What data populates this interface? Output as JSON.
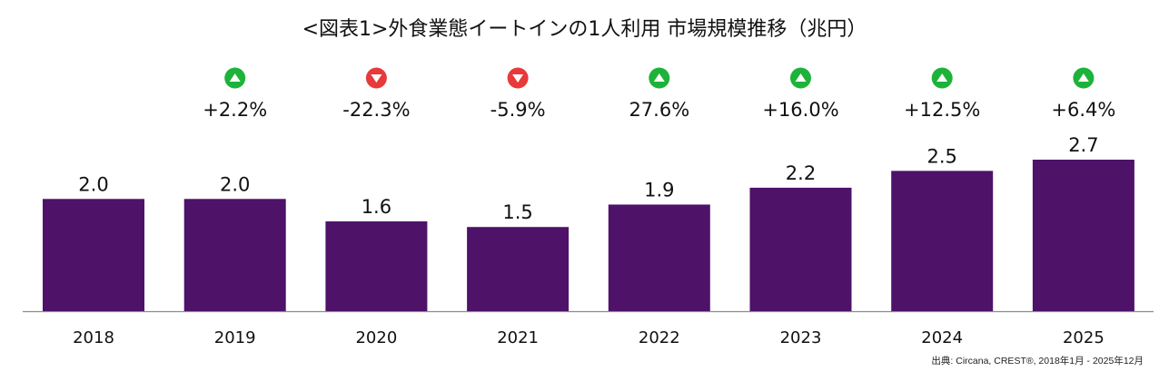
{
  "chart_data": {
    "type": "bar",
    "title": "<図表1>外食業態イートインの1人利用 市場規模推移（兆円）",
    "categories": [
      "2018",
      "2019",
      "2020",
      "2021",
      "2022",
      "2023",
      "2024",
      "2025"
    ],
    "values": [
      2.0,
      2.0,
      1.6,
      1.5,
      1.9,
      2.2,
      2.5,
      2.7
    ],
    "value_labels": [
      "2.0",
      "2.0",
      "1.6",
      "1.5",
      "1.9",
      "2.2",
      "2.5",
      "2.7"
    ],
    "changes": [
      null,
      {
        "label": "+2.2%",
        "direction": "up"
      },
      {
        "label": "-22.3%",
        "direction": "down"
      },
      {
        "label": "-5.9%",
        "direction": "down"
      },
      {
        "label": "27.6%",
        "direction": "up"
      },
      {
        "label": "+16.0%",
        "direction": "up"
      },
      {
        "label": "+12.5%",
        "direction": "up"
      },
      {
        "label": "+6.4%",
        "direction": "up"
      }
    ],
    "xlabel": "",
    "ylabel": "",
    "ylim": [
      0,
      2.7
    ],
    "grid": false,
    "legend": "none",
    "bar_color": "#4e1269",
    "up_color": "#1db33a",
    "down_color": "#e83a3a",
    "axis_color": "#8c8c8c"
  },
  "source": "出典: Circana, CREST®, 2018年1月 - 2025年12月"
}
